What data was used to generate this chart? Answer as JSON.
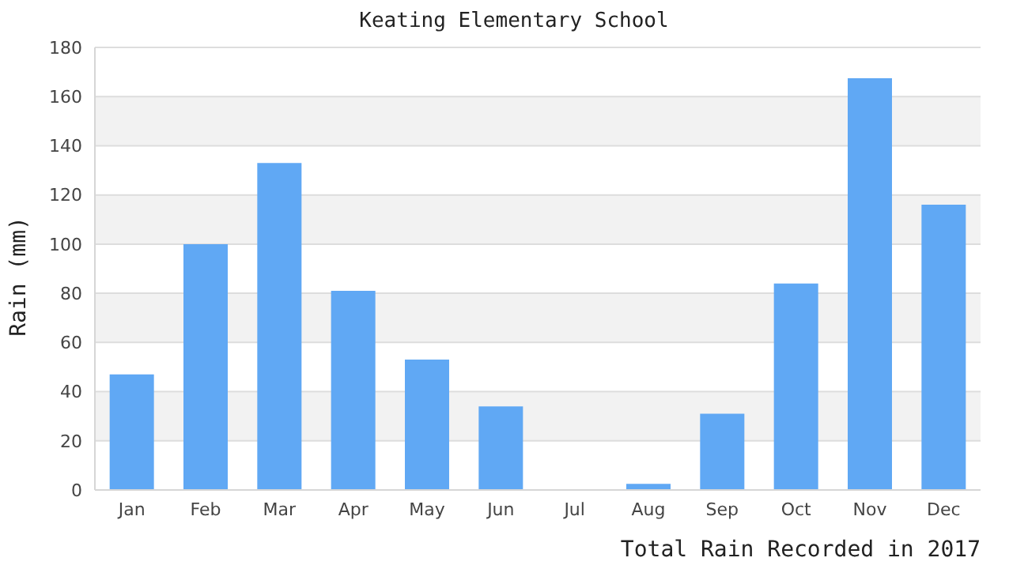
{
  "chart_data": {
    "type": "bar",
    "title": "Keating Elementary School",
    "xlabel": "Total Rain Recorded in 2017",
    "ylabel": "Rain (mm)",
    "categories": [
      "Jan",
      "Feb",
      "Mar",
      "Apr",
      "May",
      "Jun",
      "Jul",
      "Aug",
      "Sep",
      "Oct",
      "Nov",
      "Dec"
    ],
    "values": [
      47,
      100,
      133,
      81,
      53,
      34,
      0,
      2.5,
      31,
      84,
      167.5,
      116
    ],
    "color": "#60a8f4",
    "ylim": [
      0,
      180
    ],
    "yticks": [
      0,
      20,
      40,
      60,
      80,
      100,
      120,
      140,
      160,
      180
    ],
    "grid": "y"
  }
}
